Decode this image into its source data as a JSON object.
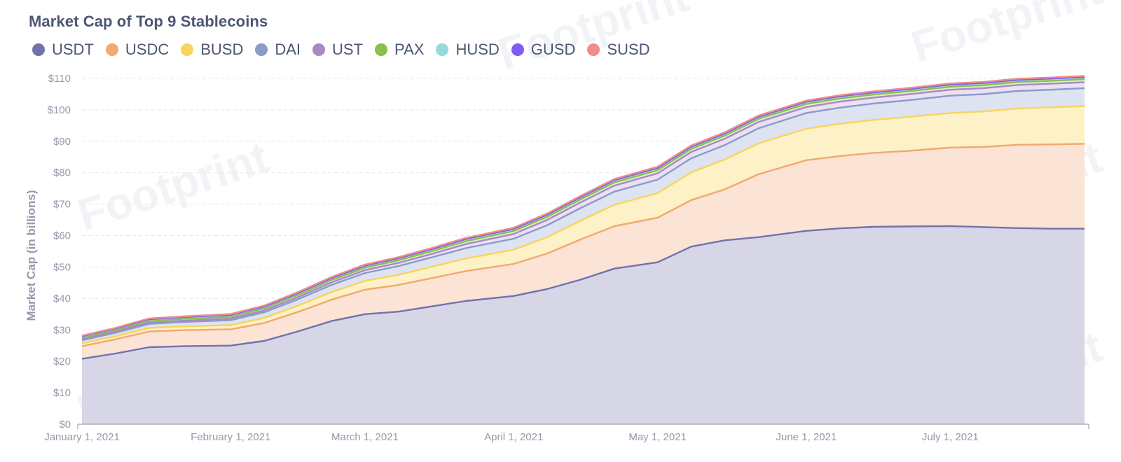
{
  "title": "Market Cap of Top 9 Stablecoins",
  "watermark": "Footprint",
  "legend": [
    {
      "name": "USDT",
      "color": "#7172ad"
    },
    {
      "name": "USDC",
      "color": "#f2a86f"
    },
    {
      "name": "BUSD",
      "color": "#f9d45c"
    },
    {
      "name": "DAI",
      "color": "#8a9bc9"
    },
    {
      "name": "UST",
      "color": "#a989c5"
    },
    {
      "name": "PAX",
      "color": "#88bf4d"
    },
    {
      "name": "HUSD",
      "color": "#98d9d9"
    },
    {
      "name": "GUSD",
      "color": "#7f5cf2"
    },
    {
      "name": "SUSD",
      "color": "#ef8c8c"
    }
  ],
  "chart_data": {
    "type": "area",
    "stacked": true,
    "ylabel": "Market Cap   (in billions)",
    "ylim": [
      0,
      110
    ],
    "y_ticks": [
      "$0",
      "$10",
      "$20",
      "$30",
      "$40",
      "$50",
      "$60",
      "$70",
      "$80",
      "$90",
      "$100",
      "$110"
    ],
    "x_ticks": [
      "January 1, 2021",
      "February 1, 2021",
      "March 1, 2021",
      "April 1, 2021",
      "May 1, 2021",
      "June 1, 2021",
      "July 1, 2021"
    ],
    "x_range": [
      "2021-01-01",
      "2021-07-29"
    ],
    "grid": "horizontal",
    "legend_position": "top-left",
    "x": [
      "2021-01-01",
      "2021-01-08",
      "2021-01-15",
      "2021-01-22",
      "2021-02-01",
      "2021-02-08",
      "2021-02-15",
      "2021-02-22",
      "2021-03-01",
      "2021-03-08",
      "2021-03-15",
      "2021-03-22",
      "2021-04-01",
      "2021-04-08",
      "2021-04-15",
      "2021-04-22",
      "2021-05-01",
      "2021-05-08",
      "2021-05-15",
      "2021-05-22",
      "2021-06-01",
      "2021-06-08",
      "2021-06-15",
      "2021-06-22",
      "2021-07-01",
      "2021-07-08",
      "2021-07-15",
      "2021-07-22",
      "2021-07-29"
    ],
    "series": [
      {
        "name": "USDT",
        "color": "#7172ad",
        "fill": "#d7d6e7",
        "values": [
          20.8,
          22.5,
          24.5,
          24.8,
          25.0,
          26.5,
          29.5,
          32.8,
          35.0,
          35.8,
          37.5,
          39.2,
          40.8,
          43.0,
          46.0,
          49.5,
          51.5,
          56.5,
          58.5,
          59.5,
          61.5,
          62.3,
          62.8,
          62.9,
          63.0,
          62.7,
          62.4,
          62.2,
          62.2
        ]
      },
      {
        "name": "USDC",
        "color": "#f2a86f",
        "fill": "#fbe3d5",
        "values": [
          4.0,
          4.5,
          5.0,
          5.1,
          5.2,
          5.7,
          6.2,
          6.8,
          7.8,
          8.5,
          9.0,
          9.5,
          10.2,
          11.3,
          12.8,
          13.5,
          14.2,
          14.8,
          16.2,
          20.0,
          22.5,
          23.0,
          23.5,
          24.0,
          25.0,
          25.5,
          26.5,
          26.8,
          27.0
        ]
      },
      {
        "name": "BUSD",
        "color": "#f9d45c",
        "fill": "#fdf1c7",
        "values": [
          0.9,
          1.0,
          1.1,
          1.2,
          1.3,
          1.6,
          2.0,
          2.4,
          2.8,
          3.2,
          3.6,
          4.0,
          4.5,
          5.2,
          6.0,
          6.8,
          7.8,
          8.8,
          9.5,
          9.8,
          10.0,
          10.3,
          10.5,
          10.8,
          11.0,
          11.3,
          11.5,
          11.8,
          12.0
        ]
      },
      {
        "name": "DAI",
        "color": "#8a9bc9",
        "fill": "#dde3f1",
        "values": [
          1.0,
          1.1,
          1.3,
          1.4,
          1.6,
          1.8,
          2.0,
          2.3,
          2.5,
          2.8,
          3.0,
          3.3,
          3.5,
          3.8,
          4.0,
          4.2,
          4.3,
          4.5,
          4.6,
          4.8,
          5.0,
          5.1,
          5.2,
          5.3,
          5.5,
          5.5,
          5.6,
          5.6,
          5.7
        ]
      },
      {
        "name": "UST",
        "color": "#a989c5",
        "fill": "#ebe1f3",
        "values": [
          0.3,
          0.35,
          0.4,
          0.4,
          0.5,
          0.6,
          0.7,
          0.8,
          0.9,
          1.0,
          1.1,
          1.3,
          1.5,
          1.7,
          1.8,
          1.9,
          2.0,
          2.0,
          2.0,
          2.0,
          1.9,
          1.9,
          1.9,
          1.9,
          1.9,
          1.9,
          1.9,
          1.9,
          1.9
        ]
      },
      {
        "name": "PAX",
        "color": "#88bf4d",
        "fill": "#dfefcd",
        "values": [
          0.5,
          0.5,
          0.55,
          0.6,
          0.6,
          0.65,
          0.7,
          0.75,
          0.8,
          0.85,
          0.9,
          0.9,
          0.95,
          1.0,
          1.0,
          1.0,
          1.0,
          1.0,
          1.0,
          1.0,
          1.0,
          1.0,
          0.95,
          0.95,
          0.95,
          0.95,
          0.95,
          0.95,
          0.95
        ]
      },
      {
        "name": "HUSD",
        "color": "#98d9d9",
        "fill": "#e2f4f4",
        "values": [
          0.4,
          0.4,
          0.45,
          0.45,
          0.5,
          0.5,
          0.5,
          0.55,
          0.55,
          0.55,
          0.55,
          0.6,
          0.6,
          0.6,
          0.6,
          0.6,
          0.6,
          0.55,
          0.55,
          0.55,
          0.55,
          0.55,
          0.55,
          0.55,
          0.55,
          0.55,
          0.55,
          0.55,
          0.55
        ]
      },
      {
        "name": "GUSD",
        "color": "#7f5cf2",
        "fill": "#ddd4fb",
        "values": [
          0.1,
          0.1,
          0.1,
          0.1,
          0.1,
          0.1,
          0.1,
          0.1,
          0.1,
          0.1,
          0.1,
          0.1,
          0.1,
          0.1,
          0.1,
          0.15,
          0.15,
          0.15,
          0.15,
          0.15,
          0.15,
          0.15,
          0.15,
          0.15,
          0.15,
          0.15,
          0.15,
          0.15,
          0.15
        ]
      },
      {
        "name": "SUSD",
        "color": "#ef8c8c",
        "fill": "#fadede",
        "values": [
          0.2,
          0.2,
          0.25,
          0.25,
          0.25,
          0.3,
          0.3,
          0.3,
          0.35,
          0.35,
          0.35,
          0.35,
          0.35,
          0.35,
          0.35,
          0.35,
          0.35,
          0.35,
          0.35,
          0.35,
          0.35,
          0.35,
          0.35,
          0.35,
          0.35,
          0.35,
          0.35,
          0.35,
          0.35
        ]
      }
    ]
  }
}
